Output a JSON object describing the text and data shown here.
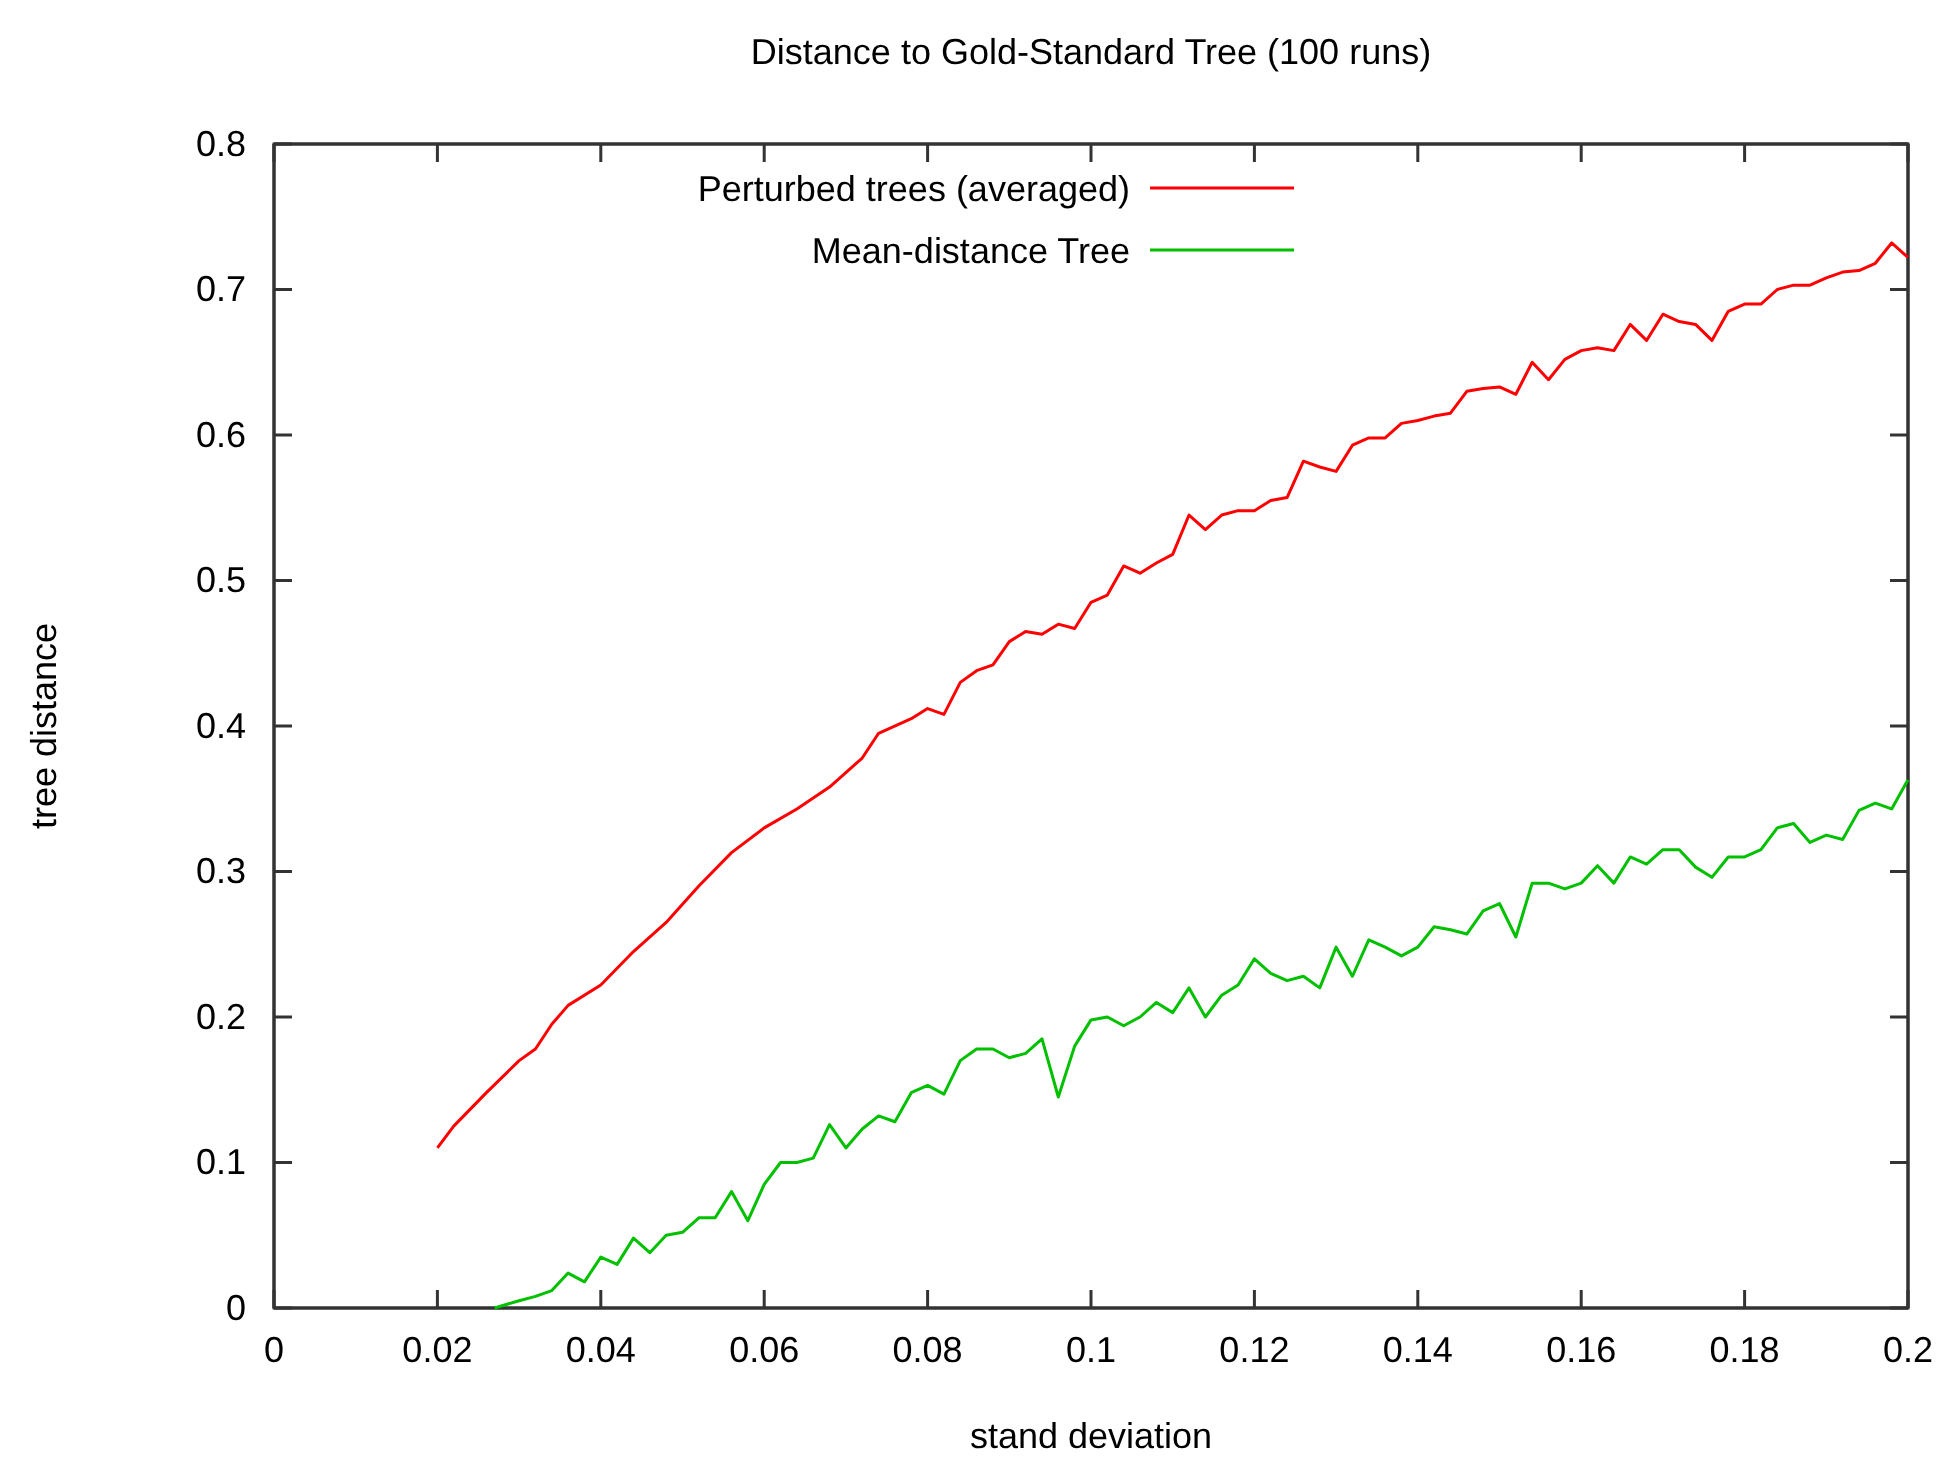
{
  "chart_data": {
    "type": "line",
    "title": "Distance to Gold-Standard Tree (100 runs)",
    "xlabel": "stand deviation",
    "ylabel": "tree distance",
    "xlim": [
      0,
      0.2
    ],
    "xticks": [
      0,
      0.02,
      0.04,
      0.06,
      0.08,
      0.1,
      0.12,
      0.14,
      0.16,
      0.18,
      0.2
    ],
    "ylim": [
      0,
      0.8
    ],
    "yticks": [
      0,
      0.1,
      0.2,
      0.3,
      0.4,
      0.5,
      0.6,
      0.7,
      0.8
    ],
    "grid": false,
    "legend": "top left",
    "line_style": "solid",
    "series": [
      {
        "name": "Perturbed trees (averaged)",
        "color": "#ff0000",
        "x": [
          0.02,
          0.022,
          0.026,
          0.03,
          0.032,
          0.034,
          0.036,
          0.04,
          0.044,
          0.048,
          0.052,
          0.056,
          0.06,
          0.064,
          0.068,
          0.072,
          0.074,
          0.078,
          0.08,
          0.082,
          0.084,
          0.086,
          0.088,
          0.09,
          0.092,
          0.094,
          0.096,
          0.098,
          0.1,
          0.102,
          0.104,
          0.106,
          0.108,
          0.11,
          0.112,
          0.114,
          0.116,
          0.118,
          0.12,
          0.122,
          0.124,
          0.126,
          0.128,
          0.13,
          0.132,
          0.134,
          0.136,
          0.138,
          0.14,
          0.142,
          0.144,
          0.146,
          0.148,
          0.15,
          0.152,
          0.154,
          0.156,
          0.158,
          0.16,
          0.162,
          0.164,
          0.166,
          0.168,
          0.17,
          0.172,
          0.174,
          0.176,
          0.178,
          0.18,
          0.182,
          0.184,
          0.186,
          0.188,
          0.19,
          0.192,
          0.194,
          0.196,
          0.198,
          0.2
        ],
        "values": [
          0.11,
          0.125,
          0.148,
          0.17,
          0.178,
          0.195,
          0.208,
          0.222,
          0.245,
          0.265,
          0.29,
          0.313,
          0.33,
          0.343,
          0.358,
          0.378,
          0.395,
          0.405,
          0.412,
          0.408,
          0.43,
          0.438,
          0.442,
          0.458,
          0.465,
          0.463,
          0.47,
          0.467,
          0.485,
          0.49,
          0.51,
          0.505,
          0.512,
          0.518,
          0.545,
          0.535,
          0.545,
          0.548,
          0.548,
          0.555,
          0.557,
          0.582,
          0.578,
          0.575,
          0.593,
          0.598,
          0.598,
          0.608,
          0.61,
          0.613,
          0.615,
          0.63,
          0.632,
          0.633,
          0.628,
          0.65,
          0.638,
          0.652,
          0.658,
          0.66,
          0.658,
          0.676,
          0.665,
          0.683,
          0.678,
          0.676,
          0.665,
          0.685,
          0.69,
          0.69,
          0.7,
          0.703,
          0.703,
          0.708,
          0.712,
          0.713,
          0.718,
          0.732,
          0.722
        ]
      },
      {
        "name": "Mean-distance Tree",
        "color": "#00c000",
        "x": [
          0.027,
          0.03,
          0.032,
          0.034,
          0.036,
          0.038,
          0.04,
          0.042,
          0.044,
          0.046,
          0.048,
          0.05,
          0.052,
          0.054,
          0.056,
          0.058,
          0.06,
          0.062,
          0.064,
          0.066,
          0.068,
          0.07,
          0.072,
          0.074,
          0.076,
          0.078,
          0.08,
          0.082,
          0.084,
          0.086,
          0.088,
          0.09,
          0.092,
          0.094,
          0.096,
          0.098,
          0.1,
          0.102,
          0.104,
          0.106,
          0.108,
          0.11,
          0.112,
          0.114,
          0.116,
          0.118,
          0.12,
          0.122,
          0.124,
          0.126,
          0.128,
          0.13,
          0.132,
          0.134,
          0.136,
          0.138,
          0.14,
          0.142,
          0.144,
          0.146,
          0.148,
          0.15,
          0.152,
          0.154,
          0.156,
          0.158,
          0.16,
          0.162,
          0.164,
          0.166,
          0.168,
          0.17,
          0.172,
          0.174,
          0.176,
          0.178,
          0.18,
          0.182,
          0.184,
          0.186,
          0.188,
          0.19,
          0.192,
          0.194,
          0.196,
          0.198,
          0.2
        ],
        "values": [
          0,
          0.005,
          0.008,
          0.012,
          0.024,
          0.018,
          0.035,
          0.03,
          0.048,
          0.038,
          0.05,
          0.052,
          0.062,
          0.062,
          0.08,
          0.06,
          0.085,
          0.1,
          0.1,
          0.103,
          0.126,
          0.11,
          0.123,
          0.132,
          0.128,
          0.148,
          0.153,
          0.147,
          0.17,
          0.178,
          0.178,
          0.172,
          0.175,
          0.185,
          0.145,
          0.18,
          0.198,
          0.2,
          0.194,
          0.2,
          0.21,
          0.203,
          0.22,
          0.2,
          0.215,
          0.222,
          0.24,
          0.23,
          0.225,
          0.228,
          0.22,
          0.248,
          0.228,
          0.253,
          0.248,
          0.242,
          0.248,
          0.262,
          0.26,
          0.257,
          0.273,
          0.278,
          0.255,
          0.292,
          0.292,
          0.288,
          0.292,
          0.304,
          0.292,
          0.31,
          0.305,
          0.315,
          0.315,
          0.303,
          0.296,
          0.31,
          0.31,
          0.315,
          0.33,
          0.333,
          0.32,
          0.325,
          0.322,
          0.342,
          0.347,
          0.343,
          0.363
        ]
      }
    ]
  }
}
